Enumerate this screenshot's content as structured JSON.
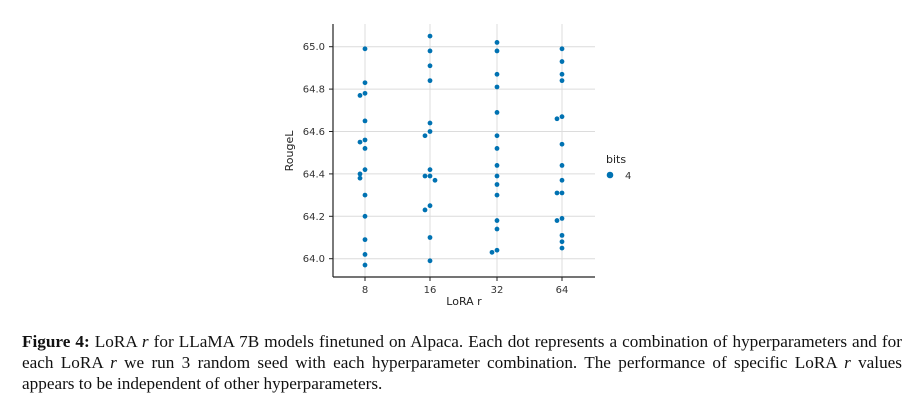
{
  "chart_data": {
    "type": "scatter",
    "title": "",
    "xlabel": "LoRA r",
    "ylabel": "RougeL",
    "categories": [
      "8",
      "16",
      "32",
      "64"
    ],
    "yticks": [
      "64.0",
      "64.2",
      "64.4",
      "64.6",
      "64.8",
      "65.0"
    ],
    "ylim": [
      63.92,
      65.1
    ],
    "grid": true,
    "legend": {
      "title": "bits",
      "entries": [
        "4"
      ],
      "placement": "right"
    },
    "color": "#0072b2",
    "series": [
      {
        "name": "4",
        "points": {
          "8": [
            64.99,
            64.83,
            64.78,
            64.77,
            64.65,
            64.56,
            64.55,
            64.52,
            64.42,
            64.4,
            64.38,
            64.3,
            64.2,
            64.09,
            64.02,
            63.97
          ],
          "16": [
            65.05,
            64.98,
            64.91,
            64.84,
            64.64,
            64.6,
            64.58,
            64.42,
            64.39,
            64.39,
            64.37,
            64.25,
            64.23,
            64.1,
            63.99
          ],
          "32": [
            65.02,
            64.98,
            64.87,
            64.81,
            64.69,
            64.58,
            64.52,
            64.44,
            64.39,
            64.35,
            64.3,
            64.18,
            64.14,
            64.04,
            64.03
          ],
          "64": [
            64.99,
            64.93,
            64.87,
            64.84,
            64.67,
            64.66,
            64.54,
            64.44,
            64.37,
            64.31,
            64.31,
            64.19,
            64.18,
            64.11,
            64.08,
            64.05
          ]
        }
      }
    ]
  },
  "caption": {
    "label": "Figure 4:",
    "part1": " LoRA ",
    "r1": "r",
    "part2": " for LLaMA 7B models finetuned on Alpaca.  Each dot represents a combination of hyperparameters and for each LoRA ",
    "r2": "r",
    "part3": " we run 3 random seed with each hyperparameter combination.  The performance of specific LoRA ",
    "r3": "r",
    "part4": " values appears to be independent of other hyperparameters."
  }
}
